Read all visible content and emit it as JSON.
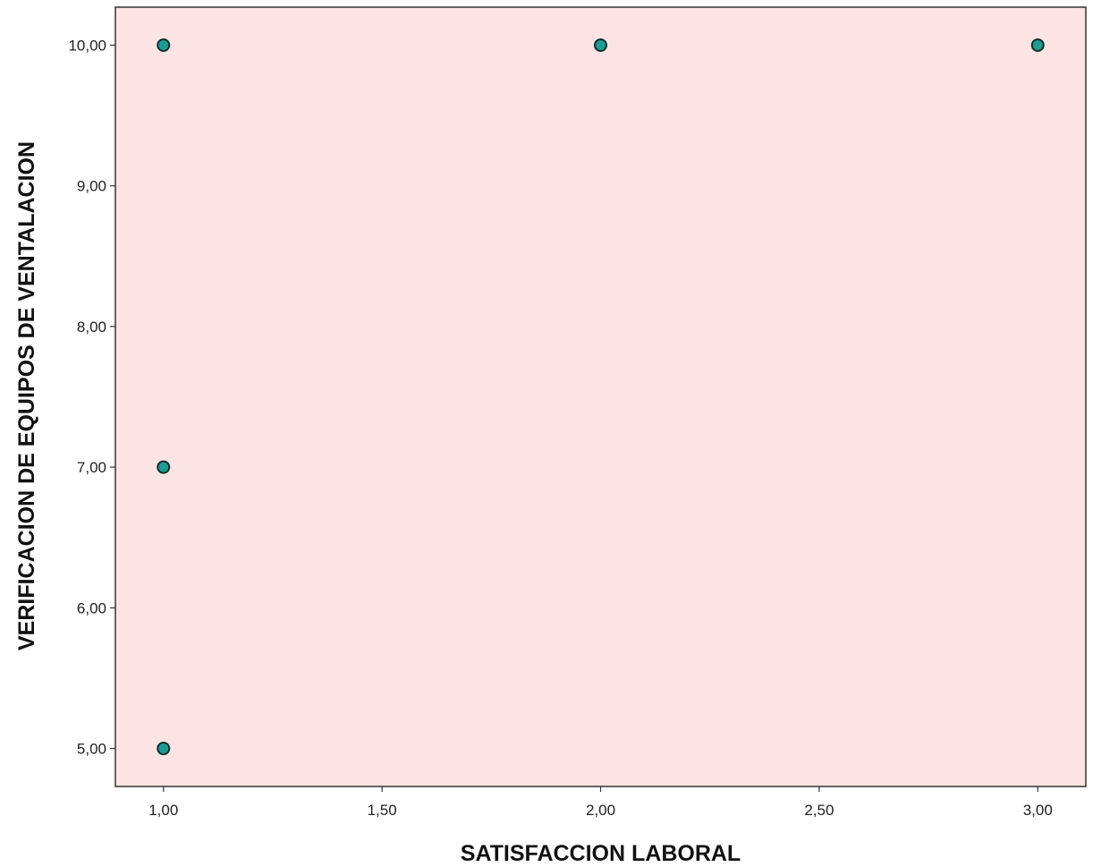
{
  "chart_data": {
    "type": "scatter",
    "title": "",
    "xlabel": "SATISFACCION LABORAL",
    "ylabel": "VERIFICACION DE EQUIPOS DE VENTALACION",
    "xlim": [
      0.89,
      3.11
    ],
    "ylim": [
      4.73,
      10.27
    ],
    "x_ticks": [
      1.0,
      1.5,
      2.0,
      2.5,
      3.0
    ],
    "x_tick_labels": [
      "1,00",
      "1,50",
      "2,00",
      "2,50",
      "3,00"
    ],
    "y_ticks": [
      5.0,
      6.0,
      7.0,
      8.0,
      9.0,
      10.0
    ],
    "y_tick_labels": [
      "5,00",
      "6,00",
      "7,00",
      "8,00",
      "9,00",
      "10,00"
    ],
    "grid": false,
    "legend": "none",
    "points": [
      {
        "x": 1.0,
        "y": 10.0
      },
      {
        "x": 1.0,
        "y": 7.0
      },
      {
        "x": 1.0,
        "y": 5.0
      },
      {
        "x": 2.0,
        "y": 10.0
      },
      {
        "x": 3.0,
        "y": 10.0
      }
    ],
    "colors": {
      "plot_background": "#fce4e4",
      "marker_fill": "#1f9b94",
      "marker_stroke": "#0c2f2d",
      "axis": "#333333"
    }
  }
}
